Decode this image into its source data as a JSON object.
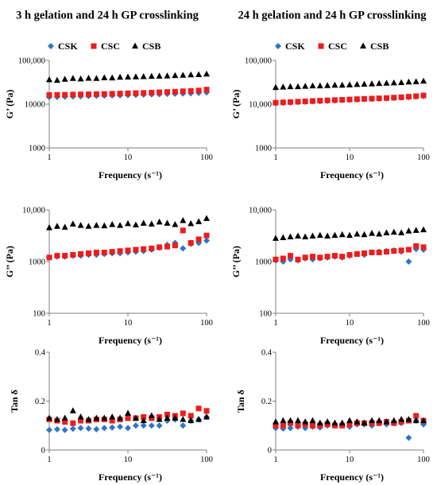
{
  "chart_data": [
    {
      "type": "scatter",
      "title": "3 h gelation and 24 h GP crosslinking",
      "xlabel": "Frequency  (s⁻¹)",
      "ylabel": "G’ (Pa)",
      "xscale": "log",
      "yscale": "log",
      "xlim": [
        1,
        100
      ],
      "ylim": [
        1000,
        100000
      ],
      "xticks": [
        "1",
        "10",
        "100"
      ],
      "yticks": [
        "1000",
        "10000",
        "100,000"
      ],
      "legend": "top",
      "grid": false,
      "series": [
        {
          "name": "CSK",
          "color": "#2E75C6",
          "marker": "diamond",
          "x": [
            1,
            1.26,
            1.58,
            2,
            2.51,
            3.16,
            3.98,
            5.01,
            6.31,
            7.94,
            10,
            12.6,
            15.8,
            20,
            25.1,
            31.6,
            39.8,
            50.1,
            63.1,
            79.4,
            100
          ],
          "y": [
            14500,
            14600,
            14800,
            15000,
            15100,
            15300,
            15500,
            15600,
            15800,
            15900,
            16100,
            16300,
            16500,
            16700,
            16900,
            17100,
            17300,
            17500,
            17700,
            18100,
            18500
          ]
        },
        {
          "name": "CSC",
          "color": "#EE1C1C",
          "marker": "square",
          "x": [
            1,
            1.26,
            1.58,
            2,
            2.51,
            3.16,
            3.98,
            5.01,
            6.31,
            7.94,
            10,
            12.6,
            15.8,
            20,
            25.1,
            31.6,
            39.8,
            50.1,
            63.1,
            79.4,
            100
          ],
          "y": [
            16200,
            16300,
            16400,
            16600,
            16700,
            16800,
            17000,
            17100,
            17300,
            17500,
            17700,
            17900,
            18100,
            18400,
            18700,
            19000,
            19300,
            19700,
            20100,
            20500,
            21500
          ]
        },
        {
          "name": "CSB",
          "color": "#000000",
          "marker": "triangle",
          "x": [
            1,
            1.26,
            1.58,
            2,
            2.51,
            3.16,
            3.98,
            5.01,
            6.31,
            7.94,
            10,
            12.6,
            15.8,
            20,
            25.1,
            31.6,
            39.8,
            50.1,
            63.1,
            79.4,
            100
          ],
          "y": [
            36000,
            35000,
            37000,
            38500,
            37500,
            39000,
            38500,
            40000,
            39500,
            41000,
            41500,
            42000,
            42500,
            43000,
            43500,
            44000,
            45000,
            45500,
            46500,
            47000,
            48500
          ]
        }
      ]
    },
    {
      "type": "scatter",
      "title": "24 h gelation and 24 h GP crosslinking",
      "xlabel": "Frequency  (s⁻¹)",
      "ylabel": "G’ (Pa)",
      "xscale": "log",
      "yscale": "log",
      "xlim": [
        1,
        100
      ],
      "ylim": [
        1000,
        100000
      ],
      "xticks": [
        "1",
        "10",
        "100"
      ],
      "yticks": [
        "1000",
        "10,000",
        "100,000"
      ],
      "legend": "top",
      "grid": false,
      "series": [
        {
          "name": "CSK",
          "color": "#2E75C6",
          "marker": "diamond",
          "x": [
            1,
            1.26,
            1.58,
            2,
            2.51,
            3.16,
            3.98,
            5.01,
            6.31,
            7.94,
            10,
            12.6,
            15.8,
            20,
            25.1,
            31.6,
            39.8,
            50.1,
            63.1,
            79.4,
            100
          ],
          "y": [
            10500,
            10700,
            10900,
            11100,
            11300,
            11500,
            11700,
            11900,
            12100,
            12300,
            12500,
            12700,
            12900,
            13100,
            13300,
            13500,
            13800,
            14100,
            14500,
            14900,
            15300
          ]
        },
        {
          "name": "CSC",
          "color": "#EE1C1C",
          "marker": "square",
          "x": [
            1,
            1.26,
            1.58,
            2,
            2.51,
            3.16,
            3.98,
            5.01,
            6.31,
            7.94,
            10,
            12.6,
            15.8,
            20,
            25.1,
            31.6,
            39.8,
            50.1,
            63.1,
            79.4,
            100
          ],
          "y": [
            10800,
            11000,
            11200,
            11400,
            11600,
            11800,
            12000,
            12200,
            12400,
            12600,
            12800,
            13000,
            13200,
            13400,
            13600,
            13800,
            14100,
            14400,
            14800,
            15200,
            15800
          ]
        },
        {
          "name": "CSB",
          "color": "#000000",
          "marker": "triangle",
          "x": [
            1,
            1.26,
            1.58,
            2,
            2.51,
            3.16,
            3.98,
            5.01,
            6.31,
            7.94,
            10,
            12.6,
            15.8,
            20,
            25.1,
            31.6,
            39.8,
            50.1,
            63.1,
            79.4,
            100
          ],
          "y": [
            24000,
            24500,
            25000,
            25000,
            25500,
            26000,
            26000,
            26500,
            27000,
            27000,
            27500,
            28000,
            28500,
            29000,
            29500,
            30000,
            30500,
            31000,
            32000,
            32500,
            33500
          ]
        }
      ]
    },
    {
      "type": "scatter",
      "xlabel": "Frequency  (s⁻¹)",
      "ylabel": "G’’ (Pa)",
      "xscale": "log",
      "yscale": "log",
      "xlim": [
        1,
        100
      ],
      "ylim": [
        100,
        10000
      ],
      "xticks": [
        "1",
        "10",
        "100"
      ],
      "yticks": [
        "100",
        "1000",
        "10,000"
      ],
      "grid": false,
      "series": [
        {
          "name": "CSK",
          "color": "#2E75C6",
          "marker": "diamond",
          "x": [
            1,
            1.26,
            1.58,
            2,
            2.51,
            3.16,
            3.98,
            5.01,
            6.31,
            7.94,
            10,
            12.6,
            15.8,
            20,
            25.1,
            31.6,
            39.8,
            50.1,
            63.1,
            79.4,
            100
          ],
          "y": [
            1200,
            1250,
            1250,
            1300,
            1300,
            1350,
            1350,
            1400,
            1450,
            1450,
            1500,
            1550,
            1600,
            1700,
            1850,
            2100,
            2300,
            1800,
            2200,
            2300,
            2550
          ]
        },
        {
          "name": "CSC",
          "color": "#EE1C1C",
          "marker": "square",
          "x": [
            1,
            1.26,
            1.58,
            2,
            2.51,
            3.16,
            3.98,
            5.01,
            6.31,
            7.94,
            10,
            12.6,
            15.8,
            20,
            25.1,
            31.6,
            39.8,
            50.1,
            63.1,
            79.4,
            100
          ],
          "y": [
            1200,
            1300,
            1300,
            1350,
            1400,
            1450,
            1500,
            1500,
            1550,
            1600,
            1650,
            1700,
            1750,
            1800,
            1900,
            1950,
            2050,
            4000,
            2300,
            2700,
            3200
          ]
        },
        {
          "name": "CSB",
          "color": "#000000",
          "marker": "triangle",
          "x": [
            1,
            1.26,
            1.58,
            2,
            2.51,
            3.16,
            3.98,
            5.01,
            6.31,
            7.94,
            10,
            12.6,
            15.8,
            20,
            25.1,
            31.6,
            39.8,
            50.1,
            63.1,
            79.4,
            100
          ],
          "y": [
            4500,
            4800,
            4600,
            5300,
            5000,
            4800,
            5000,
            4900,
            5200,
            5000,
            5400,
            5100,
            5500,
            5300,
            5800,
            5500,
            5200,
            6200,
            5400,
            5900,
            6800
          ]
        }
      ]
    },
    {
      "type": "scatter",
      "xlabel": "Frequency  (s⁻¹)",
      "ylabel": "G’’ (Pa)",
      "xscale": "log",
      "yscale": "log",
      "xlim": [
        1,
        100
      ],
      "ylim": [
        100,
        10000
      ],
      "xticks": [
        "1",
        "10",
        "100"
      ],
      "yticks": [
        "100",
        "1000",
        "10,000"
      ],
      "grid": false,
      "series": [
        {
          "name": "CSK",
          "color": "#2E75C6",
          "marker": "diamond",
          "x": [
            1,
            1.26,
            1.58,
            2,
            2.51,
            3.16,
            3.98,
            5.01,
            6.31,
            7.94,
            10,
            12.6,
            15.8,
            20,
            25.1,
            31.6,
            39.8,
            50.1,
            63.1,
            79.4,
            100
          ],
          "y": [
            1050,
            1000,
            1100,
            1050,
            1150,
            1100,
            1150,
            1200,
            1250,
            1200,
            1300,
            1400,
            1350,
            1500,
            1550,
            1600,
            1650,
            1550,
            1000,
            1750,
            1700
          ]
        },
        {
          "name": "CSC",
          "color": "#EE1C1C",
          "marker": "square",
          "x": [
            1,
            1.26,
            1.58,
            2,
            2.51,
            3.16,
            3.98,
            5.01,
            6.31,
            7.94,
            10,
            12.6,
            15.8,
            20,
            25.1,
            31.6,
            39.8,
            50.1,
            63.1,
            79.4,
            100
          ],
          "y": [
            1100,
            1150,
            1300,
            1100,
            1200,
            1250,
            1200,
            1250,
            1300,
            1250,
            1350,
            1400,
            1450,
            1500,
            1500,
            1550,
            1600,
            1650,
            1700,
            2000,
            1900
          ]
        },
        {
          "name": "CSB",
          "color": "#000000",
          "marker": "triangle",
          "x": [
            1,
            1.26,
            1.58,
            2,
            2.51,
            3.16,
            3.98,
            5.01,
            6.31,
            7.94,
            10,
            12.6,
            15.8,
            20,
            25.1,
            31.6,
            39.8,
            50.1,
            63.1,
            79.4,
            100
          ],
          "y": [
            2800,
            2900,
            3000,
            3100,
            3000,
            3100,
            3200,
            3100,
            3200,
            3300,
            3200,
            3400,
            3300,
            3500,
            3400,
            3600,
            3700,
            3600,
            3900,
            4000,
            4100
          ]
        }
      ]
    },
    {
      "type": "scatter",
      "xlabel": "Frequency  (s⁻¹)",
      "ylabel": "Tan δ",
      "xscale": "log",
      "yscale": "linear",
      "xlim": [
        1,
        100
      ],
      "ylim": [
        0,
        0.4
      ],
      "xticks": [
        "1",
        "10",
        "100"
      ],
      "yticks": [
        "0",
        "0.2",
        "0.4"
      ],
      "grid": false,
      "series": [
        {
          "name": "CSK",
          "color": "#2E75C6",
          "marker": "diamond",
          "x": [
            1,
            1.26,
            1.58,
            2,
            2.51,
            3.16,
            3.98,
            5.01,
            6.31,
            7.94,
            10,
            12.6,
            15.8,
            20,
            25.1,
            31.6,
            39.8,
            50.1,
            63.1,
            79.4,
            100
          ],
          "y": [
            0.082,
            0.085,
            0.082,
            0.087,
            0.09,
            0.088,
            0.085,
            0.09,
            0.092,
            0.095,
            0.09,
            0.1,
            0.1,
            0.1,
            0.1,
            0.12,
            0.125,
            0.1,
            0.12,
            0.125,
            0.135
          ]
        },
        {
          "name": "CSC",
          "color": "#EE1C1C",
          "marker": "square",
          "x": [
            1,
            1.26,
            1.58,
            2,
            2.51,
            3.16,
            3.98,
            5.01,
            6.31,
            7.94,
            10,
            12.6,
            15.8,
            20,
            25.1,
            31.6,
            39.8,
            50.1,
            63.1,
            79.4,
            100
          ],
          "y": [
            0.125,
            0.12,
            0.115,
            0.11,
            0.12,
            0.12,
            0.125,
            0.125,
            0.12,
            0.125,
            0.13,
            0.13,
            0.135,
            0.13,
            0.135,
            0.145,
            0.14,
            0.15,
            0.14,
            0.17,
            0.16
          ]
        },
        {
          "name": "CSB",
          "color": "#000000",
          "marker": "triangle",
          "x": [
            1,
            1.26,
            1.58,
            2,
            2.51,
            3.16,
            3.98,
            5.01,
            6.31,
            7.94,
            10,
            12.6,
            15.8,
            20,
            25.1,
            31.6,
            39.8,
            50.1,
            63.1,
            79.4,
            100
          ],
          "y": [
            0.13,
            0.125,
            0.13,
            0.16,
            0.135,
            0.125,
            0.13,
            0.13,
            0.135,
            0.13,
            0.15,
            0.13,
            0.12,
            0.14,
            0.125,
            0.13,
            0.13,
            0.125,
            0.12,
            0.125,
            0.135
          ]
        }
      ]
    },
    {
      "type": "scatter",
      "xlabel": "Frequency  (s⁻¹)",
      "ylabel": "Tan δ",
      "xscale": "log",
      "yscale": "linear",
      "xlim": [
        1,
        100
      ],
      "ylim": [
        0,
        0.4
      ],
      "xticks": [
        "1",
        "10",
        "100"
      ],
      "yticks": [
        "0",
        "0.2",
        "0.4"
      ],
      "grid": false,
      "series": [
        {
          "name": "CSK",
          "color": "#2E75C6",
          "marker": "diamond",
          "x": [
            1,
            1.26,
            1.58,
            2,
            2.51,
            3.16,
            3.98,
            5.01,
            6.31,
            7.94,
            10,
            12.6,
            15.8,
            20,
            25.1,
            31.6,
            39.8,
            50.1,
            63.1,
            79.4,
            100
          ],
          "y": [
            0.09,
            0.088,
            0.09,
            0.095,
            0.09,
            0.095,
            0.092,
            0.1,
            0.1,
            0.1,
            0.095,
            0.105,
            0.105,
            0.1,
            0.11,
            0.105,
            0.11,
            0.11,
            0.05,
            0.12,
            0.105
          ]
        },
        {
          "name": "CSC",
          "color": "#EE1C1C",
          "marker": "square",
          "x": [
            1,
            1.26,
            1.58,
            2,
            2.51,
            3.16,
            3.98,
            5.01,
            6.31,
            7.94,
            10,
            12.6,
            15.8,
            20,
            25.1,
            31.6,
            39.8,
            50.1,
            63.1,
            79.4,
            100
          ],
          "y": [
            0.1,
            0.1,
            0.11,
            0.1,
            0.105,
            0.1,
            0.1,
            0.105,
            0.1,
            0.1,
            0.105,
            0.11,
            0.11,
            0.11,
            0.11,
            0.115,
            0.11,
            0.115,
            0.12,
            0.14,
            0.12
          ]
        },
        {
          "name": "CSB",
          "color": "#000000",
          "marker": "triangle",
          "x": [
            1,
            1.26,
            1.58,
            2,
            2.51,
            3.16,
            3.98,
            5.01,
            6.31,
            7.94,
            10,
            12.6,
            15.8,
            20,
            25.1,
            31.6,
            39.8,
            50.1,
            63.1,
            79.4,
            100
          ],
          "y": [
            0.115,
            0.12,
            0.12,
            0.12,
            0.115,
            0.12,
            0.11,
            0.115,
            0.11,
            0.11,
            0.12,
            0.115,
            0.11,
            0.12,
            0.12,
            0.115,
            0.12,
            0.125,
            0.125,
            0.12,
            0.12
          ]
        }
      ]
    }
  ]
}
